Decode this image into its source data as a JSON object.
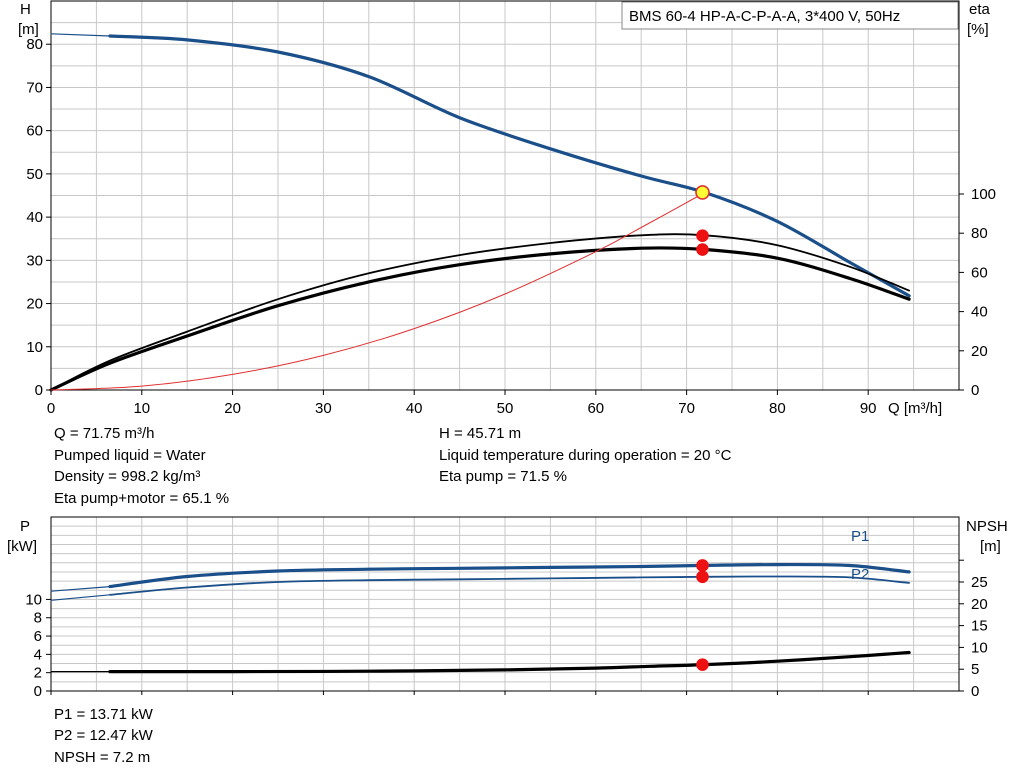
{
  "chart_data": [
    {
      "type": "line",
      "title": "BMS 60-4 HP-A-C-P-A-A, 3*400 V, 50Hz",
      "xlabel": "Q [m³/h]",
      "ylabel_left": [
        "H",
        "[m]"
      ],
      "ylabel_right": [
        "eta",
        "[%]"
      ],
      "xlim": [
        0,
        100
      ],
      "ylim_left": [
        0,
        90
      ],
      "ylim_right": [
        0,
        100
      ],
      "x_ticks": [
        "0",
        "10",
        "20",
        "30",
        "40",
        "50",
        "60",
        "70",
        "80",
        "90"
      ],
      "y_ticks_left": [
        "0",
        "10",
        "20",
        "30",
        "40",
        "50",
        "60",
        "70",
        "80"
      ],
      "y_ticks_right": [
        "0",
        "20",
        "40",
        "60",
        "80",
        "100"
      ],
      "grid": true,
      "series": [
        {
          "key": "head",
          "axis": "left",
          "color": "#1a4f8a",
          "width": 3.2,
          "x": [
            6.5,
            15,
            25,
            35,
            45,
            55,
            65,
            72,
            80,
            88,
            94.5
          ],
          "y": [
            81.9,
            81.0,
            78.2,
            72.5,
            63.0,
            55.8,
            49.5,
            45.7,
            39.0,
            29.5,
            21.8
          ]
        },
        {
          "key": "head-ext",
          "axis": "left",
          "color": "#1a4f8a",
          "width": 1.2,
          "x": [
            0,
            6.5
          ],
          "y": [
            82.4,
            81.9
          ]
        },
        {
          "key": "eta-pump",
          "axis": "left",
          "color": "#000000",
          "width": 1.8,
          "x": [
            0,
            6.5,
            15,
            25,
            35,
            45,
            55,
            65,
            72,
            80,
            88,
            94.5
          ],
          "y": [
            0,
            6.8,
            13.5,
            21.0,
            27.0,
            31.2,
            34.0,
            35.8,
            35.8,
            33.5,
            28.5,
            23.0
          ]
        },
        {
          "key": "eta-total",
          "axis": "left",
          "color": "#000000",
          "width": 3.2,
          "x": [
            0,
            6.5,
            15,
            25,
            35,
            45,
            55,
            65,
            72,
            80,
            88,
            94.5
          ],
          "y": [
            0,
            6.2,
            12.5,
            19.5,
            25.0,
            29.0,
            31.5,
            32.8,
            32.5,
            30.5,
            25.8,
            21.0
          ]
        },
        {
          "key": "system",
          "axis": "left",
          "color": "#e03030",
          "width": 1.0,
          "x": [
            0,
            10,
            20,
            30,
            40,
            50,
            60,
            65,
            72
          ],
          "y": [
            0,
            0.9,
            3.6,
            8.0,
            14.2,
            22.2,
            32.0,
            37.6,
            45.7
          ]
        }
      ],
      "duty_points": [
        {
          "axis": "left",
          "x": 71.75,
          "y": 45.71,
          "fill": "#ffff33",
          "stroke": "#e03030"
        },
        {
          "axis": "left",
          "x": 71.75,
          "y": 35.7,
          "fill": "#ee1111",
          "stroke": "#ee1111"
        },
        {
          "axis": "left",
          "x": 71.75,
          "y": 32.5,
          "fill": "#ee1111",
          "stroke": "#ee1111"
        }
      ]
    },
    {
      "type": "line",
      "xlim": [
        0,
        100
      ],
      "ylabel_left": [
        "P",
        "[kW]"
      ],
      "ylabel_right": [
        "NPSH",
        "[m]"
      ],
      "y_ticks_left": [
        "0",
        "2",
        "4",
        "6",
        "8",
        "10"
      ],
      "y_ticks_right": [
        "0",
        "5",
        "10",
        "15",
        "20",
        "25"
      ],
      "ylim_left": [
        0,
        19
      ],
      "grid": true,
      "series": [
        {
          "key": "p1",
          "name": "P1",
          "color": "#1a4f8a",
          "width": 3.2,
          "x": [
            6.5,
            15,
            25,
            35,
            45,
            55,
            65,
            72,
            80,
            88,
            94.5
          ],
          "y": [
            11.4,
            12.5,
            13.1,
            13.3,
            13.4,
            13.5,
            13.6,
            13.71,
            13.8,
            13.7,
            13.0
          ]
        },
        {
          "key": "p1-ext",
          "color": "#1a4f8a",
          "width": 1.2,
          "x": [
            0,
            6.5
          ],
          "y": [
            10.9,
            11.4
          ]
        },
        {
          "key": "p2",
          "name": "P2",
          "color": "#1a4f8a",
          "width": 1.8,
          "x": [
            6.5,
            15,
            25,
            35,
            45,
            55,
            65,
            72,
            80,
            88,
            94.5
          ],
          "y": [
            10.5,
            11.3,
            11.9,
            12.1,
            12.2,
            12.3,
            12.4,
            12.47,
            12.5,
            12.4,
            11.8
          ]
        },
        {
          "key": "p2-ext",
          "color": "#1a4f8a",
          "width": 1.2,
          "x": [
            0,
            6.5
          ],
          "y": [
            9.9,
            10.5
          ]
        },
        {
          "key": "npsh",
          "color": "#000000",
          "width": 3.2,
          "x": [
            6.5,
            20,
            35,
            50,
            60,
            66,
            72,
            80,
            88,
            94.5
          ],
          "y": [
            2.12,
            2.12,
            2.16,
            2.3,
            2.5,
            2.7,
            2.88,
            3.25,
            3.75,
            4.2
          ]
        },
        {
          "key": "npsh-ext",
          "color": "#000000",
          "width": 1.2,
          "x": [
            0,
            6.5
          ],
          "y": [
            2.12,
            2.12
          ]
        }
      ],
      "duty_points": [
        {
          "x": 71.75,
          "y": 13.71,
          "fill": "#ee1111",
          "stroke": "#ee1111"
        },
        {
          "x": 71.75,
          "y": 12.47,
          "fill": "#ee1111",
          "stroke": "#ee1111"
        },
        {
          "x": 71.75,
          "y": 2.88,
          "fill": "#ee1111",
          "stroke": "#ee1111"
        }
      ]
    }
  ],
  "info": {
    "q": "Q = 71.75 m³/h",
    "liquid": "Pumped liquid = Water",
    "density": "Density = 998.2 kg/m³",
    "eta_total": "Eta pump+motor = 65.1 %",
    "h": "H = 45.71 m",
    "temp": "Liquid temperature during operation = 20 °C",
    "eta_pump": "Eta pump = 71.5 %",
    "p1": "P1 = 13.71 kW",
    "p2": "P2 = 12.47 kW",
    "npsh": "NPSH = 7.2 m"
  }
}
